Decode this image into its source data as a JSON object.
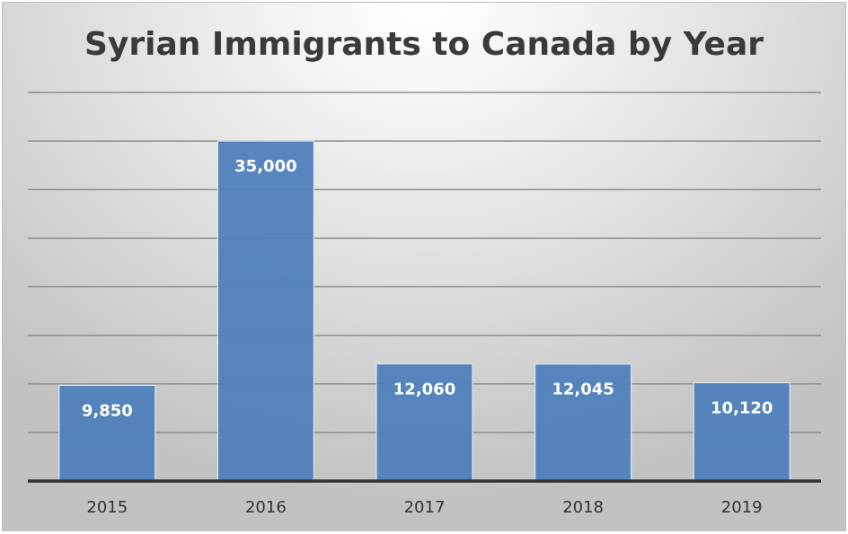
{
  "chart_data": {
    "type": "bar",
    "title": "Syrian Immigrants to Canada by Year",
    "categories": [
      "2015",
      "2016",
      "2017",
      "2018",
      "2019"
    ],
    "values": [
      9850,
      35000,
      12060,
      12045,
      10120
    ],
    "data_labels": [
      "9,850",
      "35,000",
      "12,060",
      "12,045",
      "10,120"
    ],
    "xlabel": "",
    "ylabel": "",
    "ylim": [
      0,
      40000
    ],
    "gridline_step": 5000,
    "grid": true,
    "y_tick_labels_shown": false,
    "legend": "none",
    "colors": {
      "bar": "#4f81bd",
      "bar_border": "#dce6f2",
      "grid": "#8c8c8c",
      "axis": "#333333"
    }
  }
}
